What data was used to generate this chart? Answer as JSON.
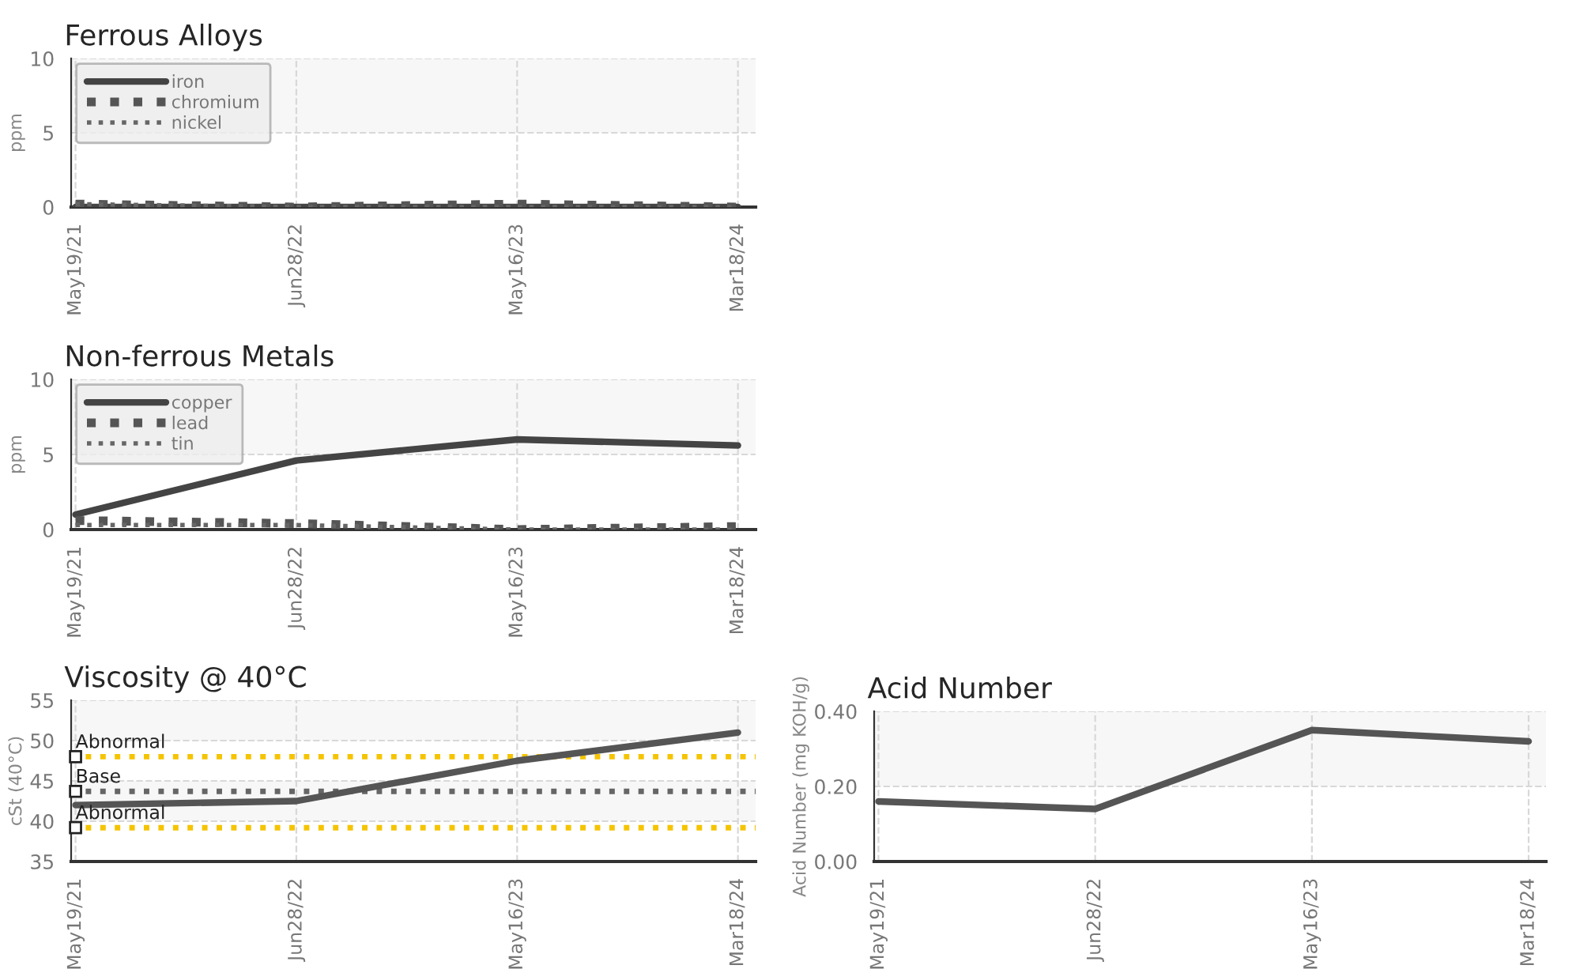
{
  "chart_data": [
    {
      "type": "line",
      "title": "Ferrous Alloys",
      "ylabel": "ppm",
      "categories": [
        "May19/21",
        "Jun28/22",
        "May16/23",
        "Mar18/24"
      ],
      "series": [
        {
          "name": "iron",
          "color": "#444444",
          "values": [
            0,
            0,
            0,
            0
          ],
          "line_style": "solid"
        },
        {
          "name": "chromium",
          "color": "#555555",
          "values": [
            0.2,
            0,
            0.2,
            0
          ],
          "line_style": "dotted"
        },
        {
          "name": "nickel",
          "color": "#666666",
          "values": [
            0.2,
            0,
            0,
            0
          ],
          "line_style": "dotted"
        }
      ],
      "ylim": [
        0,
        10
      ],
      "yticks": [
        0,
        5,
        10
      ],
      "bands": [
        {
          "axis": "y",
          "from": 5,
          "to": 10,
          "color": "#f7f7f7"
        }
      ],
      "grid": true,
      "legend": "top left"
    },
    {
      "type": "line",
      "title": "Non-ferrous Metals",
      "ylabel": "ppm",
      "categories": [
        "May19/21",
        "Jun28/22",
        "May16/23",
        "Mar18/24"
      ],
      "series": [
        {
          "name": "copper",
          "color": "#444444",
          "values": [
            1,
            4.6,
            6,
            5.6
          ],
          "line_style": "solid"
        },
        {
          "name": "lead",
          "color": "#555555",
          "values": [
            0.6,
            0.4,
            0,
            0.2
          ],
          "line_style": "dotted"
        },
        {
          "name": "tin",
          "color": "#666666",
          "values": [
            0.3,
            0.3,
            0,
            0
          ],
          "line_style": "dotted"
        }
      ],
      "ylim": [
        0,
        10
      ],
      "yticks": [
        0,
        5,
        10
      ],
      "bands": [
        {
          "axis": "y",
          "from": 5,
          "to": 10,
          "color": "#f7f7f7"
        }
      ],
      "grid": true,
      "legend": "top left"
    },
    {
      "type": "line",
      "title": "Viscosity @ 40°C",
      "ylabel": "cSt (40°C)",
      "categories": [
        "May19/21",
        "Jun28/22",
        "May16/23",
        "Mar18/24"
      ],
      "series": [
        {
          "color": "#555555",
          "values": [
            42,
            42.5,
            47.5,
            51
          ],
          "line_style": "solid"
        }
      ],
      "ylim": [
        35,
        55
      ],
      "yticks": [
        35,
        40,
        45,
        50,
        55
      ],
      "bands": [
        {
          "axis": "y",
          "from": 50,
          "to": 55,
          "color": "#f7f7f7"
        },
        {
          "axis": "y",
          "from": 40,
          "to": 45,
          "color": "#f7f7f7"
        }
      ],
      "ref_lines": [
        {
          "axis": "y",
          "value": 48,
          "label": "Abnormal",
          "color": "#f5c400",
          "line_style": "dotted"
        },
        {
          "axis": "y",
          "value": 43.7,
          "label": "Base",
          "color": "#666666",
          "line_style": "dotted"
        },
        {
          "axis": "y",
          "value": 39.2,
          "label": "Abnormal",
          "color": "#f5c400",
          "line_style": "dotted"
        }
      ],
      "grid": true
    },
    {
      "type": "line",
      "title": "Acid Number",
      "ylabel": "Acid Number (mg KOH/g)",
      "categories": [
        "May19/21",
        "Jun28/22",
        "May16/23",
        "Mar18/24"
      ],
      "series": [
        {
          "color": "#555555",
          "values": [
            0.16,
            0.14,
            0.35,
            0.32
          ],
          "line_style": "solid"
        }
      ],
      "ylim": [
        0,
        0.4
      ],
      "yticks": [
        {
          "value": 0,
          "label": "0.00"
        },
        {
          "value": 0.2,
          "label": "0.20"
        },
        {
          "value": 0.4,
          "label": "0.40"
        }
      ],
      "bands": [
        {
          "axis": "y",
          "from": 0.2,
          "to": 0.4,
          "color": "#f7f7f7"
        }
      ],
      "grid": true
    }
  ]
}
